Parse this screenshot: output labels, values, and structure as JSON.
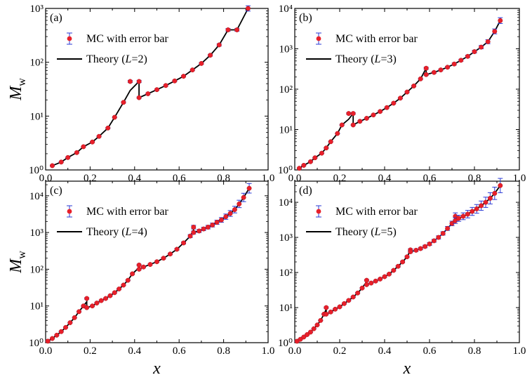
{
  "figure": {
    "ylabel_main": "M",
    "ylabel_sub": "w",
    "xlabel": "x",
    "colors": {
      "marker": "#e8202a",
      "errorbar": "#2b3bd6",
      "theory": "#000000"
    }
  },
  "legend": {
    "mc_label": "MC with error bar"
  },
  "chart_data": [
    {
      "type": "scatter",
      "panel": "(a)",
      "yscale": "log",
      "xlim": [
        0.0,
        1.0
      ],
      "ylim": [
        1,
        1000
      ],
      "xticks": [
        0.0,
        0.2,
        0.4,
        0.6,
        0.8,
        1.0
      ],
      "xtick_labels": [
        "0.0",
        "0.2",
        "0.4",
        "0.6",
        "0.8",
        "1.0"
      ],
      "yticks": [
        1,
        10,
        100,
        1000
      ],
      "ytick_labels": [
        "10⁰",
        "10¹",
        "10²",
        "10³"
      ],
      "show_xtick_labels": true,
      "show_ylabel": true,
      "show_xlabel": false,
      "legend": {
        "position": "top-left",
        "mc": "MC with error bar",
        "theory_prefix": "Theory (",
        "theory_var": "L",
        "theory_suffix": "=2)"
      },
      "series": [
        {
          "name": "MC with error bar",
          "x": [
            0.03,
            0.07,
            0.1,
            0.14,
            0.17,
            0.21,
            0.24,
            0.28,
            0.31,
            0.35,
            0.38,
            0.42,
            0.42,
            0.46,
            0.5,
            0.54,
            0.58,
            0.62,
            0.66,
            0.7,
            0.74,
            0.78,
            0.82,
            0.86,
            0.91
          ],
          "y": [
            1.2,
            1.4,
            1.7,
            2.1,
            2.7,
            3.3,
            4.2,
            6.0,
            9.5,
            18,
            44,
            44,
            22,
            26,
            31,
            37,
            45,
            55,
            72,
            95,
            135,
            210,
            400,
            400,
            1000
          ],
          "yerr_frac": [
            0.02,
            0.02,
            0.02,
            0.02,
            0.02,
            0.02,
            0.02,
            0.02,
            0.02,
            0.03,
            0.05,
            0.05,
            0.03,
            0.03,
            0.03,
            0.03,
            0.03,
            0.03,
            0.03,
            0.04,
            0.04,
            0.05,
            0.06,
            0.06,
            0.12
          ]
        },
        {
          "name": "Theory",
          "x": [
            0.03,
            0.07,
            0.1,
            0.14,
            0.17,
            0.21,
            0.24,
            0.28,
            0.31,
            0.35,
            0.38,
            0.42,
            0.42,
            0.46,
            0.5,
            0.54,
            0.58,
            0.62,
            0.66,
            0.7,
            0.74,
            0.78,
            0.82,
            0.86,
            0.86,
            0.91
          ],
          "y": [
            1.2,
            1.4,
            1.7,
            2.1,
            2.7,
            3.3,
            4.2,
            6.0,
            9.5,
            18,
            30,
            44,
            22,
            26,
            31,
            37,
            45,
            55,
            72,
            95,
            135,
            210,
            400,
            400,
            400,
            1000
          ]
        }
      ]
    },
    {
      "type": "scatter",
      "panel": "(b)",
      "yscale": "log",
      "xlim": [
        0.0,
        1.0
      ],
      "ylim": [
        1,
        10000
      ],
      "xticks": [
        0.0,
        0.2,
        0.4,
        0.6,
        0.8,
        1.0
      ],
      "xtick_labels": [
        "0.0",
        "0.2",
        "0.4",
        "0.6",
        "0.8",
        "1.0"
      ],
      "yticks": [
        1,
        10,
        100,
        1000,
        10000
      ],
      "ytick_labels": [
        "10⁰",
        "10¹",
        "10²",
        "10³",
        "10⁴"
      ],
      "show_xtick_labels": true,
      "show_ylabel": false,
      "show_xlabel": false,
      "legend": {
        "position": "top-left",
        "mc": "MC with error bar",
        "theory_prefix": "Theory (",
        "theory_var": "L",
        "theory_suffix": "=3)"
      },
      "series": [
        {
          "name": "MC with error bar",
          "x": [
            0.02,
            0.04,
            0.07,
            0.09,
            0.12,
            0.14,
            0.16,
            0.19,
            0.21,
            0.24,
            0.26,
            0.26,
            0.29,
            0.32,
            0.35,
            0.38,
            0.41,
            0.44,
            0.47,
            0.5,
            0.53,
            0.56,
            0.585,
            0.585,
            0.62,
            0.65,
            0.68,
            0.71,
            0.74,
            0.77,
            0.8,
            0.83,
            0.86,
            0.89,
            0.915
          ],
          "y": [
            1.1,
            1.3,
            1.6,
            2.0,
            2.6,
            3.5,
            5.0,
            8.0,
            13,
            25,
            25,
            13,
            16,
            19,
            23,
            28,
            35,
            45,
            60,
            85,
            120,
            180,
            330,
            230,
            260,
            300,
            350,
            420,
            520,
            650,
            850,
            1100,
            1500,
            2700,
            5000
          ],
          "yerr_frac": [
            0.02,
            0.02,
            0.02,
            0.02,
            0.02,
            0.02,
            0.02,
            0.02,
            0.03,
            0.05,
            0.05,
            0.03,
            0.03,
            0.03,
            0.03,
            0.03,
            0.03,
            0.03,
            0.03,
            0.03,
            0.04,
            0.04,
            0.06,
            0.05,
            0.05,
            0.05,
            0.05,
            0.06,
            0.06,
            0.07,
            0.08,
            0.1,
            0.12,
            0.15,
            0.18
          ]
        },
        {
          "name": "Theory",
          "x": [
            0.02,
            0.04,
            0.07,
            0.09,
            0.12,
            0.14,
            0.16,
            0.19,
            0.21,
            0.24,
            0.26,
            0.26,
            0.29,
            0.32,
            0.35,
            0.38,
            0.41,
            0.44,
            0.47,
            0.5,
            0.53,
            0.56,
            0.585,
            0.585,
            0.62,
            0.65,
            0.68,
            0.71,
            0.74,
            0.77,
            0.8,
            0.83,
            0.86,
            0.89,
            0.915
          ],
          "y": [
            1.1,
            1.3,
            1.6,
            2.0,
            2.6,
            3.5,
            5.0,
            8.0,
            13,
            18,
            25,
            13,
            16,
            19,
            23,
            28,
            35,
            45,
            60,
            85,
            120,
            180,
            330,
            230,
            260,
            300,
            350,
            420,
            520,
            650,
            850,
            1100,
            1500,
            2700,
            5000
          ]
        }
      ]
    },
    {
      "type": "scatter",
      "panel": "(c)",
      "yscale": "log",
      "xlim": [
        0.0,
        1.0
      ],
      "ylim": [
        1,
        25000
      ],
      "xticks": [
        0.0,
        0.2,
        0.4,
        0.6,
        0.8,
        1.0
      ],
      "xtick_labels": [
        "0.0",
        "0.2",
        "0.4",
        "0.6",
        "0.8",
        "1.0"
      ],
      "yticks": [
        1,
        10,
        100,
        1000,
        10000
      ],
      "ytick_labels": [
        "10⁰",
        "10¹",
        "10²",
        "10³",
        "10⁴"
      ],
      "show_xtick_labels": true,
      "show_ylabel": true,
      "show_xlabel": true,
      "legend": {
        "position": "top-left",
        "mc": "MC with error bar",
        "theory_prefix": "Theory (",
        "theory_var": "L",
        "theory_suffix": "=4)"
      },
      "series": [
        {
          "name": "MC with error bar",
          "x": [
            0.01,
            0.03,
            0.05,
            0.07,
            0.09,
            0.11,
            0.13,
            0.15,
            0.17,
            0.185,
            0.185,
            0.21,
            0.23,
            0.25,
            0.27,
            0.29,
            0.31,
            0.33,
            0.35,
            0.37,
            0.39,
            0.42,
            0.42,
            0.44,
            0.47,
            0.5,
            0.53,
            0.56,
            0.59,
            0.62,
            0.65,
            0.665,
            0.665,
            0.69,
            0.71,
            0.73,
            0.75,
            0.77,
            0.79,
            0.81,
            0.83,
            0.85,
            0.87,
            0.89,
            0.915
          ],
          "y": [
            1.1,
            1.3,
            1.6,
            2.0,
            2.6,
            3.5,
            4.8,
            7,
            10,
            16,
            9,
            10,
            12,
            14,
            16,
            19,
            23,
            29,
            37,
            50,
            75,
            130,
            100,
            115,
            135,
            160,
            200,
            260,
            350,
            520,
            800,
            1400,
            1000,
            1100,
            1250,
            1400,
            1600,
            1900,
            2200,
            2700,
            3300,
            4200,
            6000,
            9000,
            16000
          ],
          "yerr_frac": [
            0.02,
            0.02,
            0.02,
            0.02,
            0.02,
            0.02,
            0.02,
            0.02,
            0.03,
            0.05,
            0.03,
            0.03,
            0.03,
            0.03,
            0.03,
            0.03,
            0.03,
            0.03,
            0.03,
            0.03,
            0.04,
            0.05,
            0.04,
            0.04,
            0.04,
            0.04,
            0.05,
            0.05,
            0.06,
            0.07,
            0.1,
            0.12,
            0.1,
            0.1,
            0.11,
            0.12,
            0.13,
            0.14,
            0.16,
            0.18,
            0.2,
            0.23,
            0.26,
            0.3,
            0.35
          ]
        },
        {
          "name": "Theory",
          "x": [
            0.01,
            0.03,
            0.05,
            0.07,
            0.09,
            0.11,
            0.13,
            0.15,
            0.17,
            0.185,
            0.185,
            0.21,
            0.23,
            0.25,
            0.27,
            0.29,
            0.31,
            0.33,
            0.35,
            0.37,
            0.39,
            0.42,
            0.42,
            0.44,
            0.47,
            0.5,
            0.53,
            0.56,
            0.59,
            0.62,
            0.65,
            0.665,
            0.665,
            0.69,
            0.71,
            0.73,
            0.75,
            0.77,
            0.79,
            0.81,
            0.83,
            0.85,
            0.87,
            0.89,
            0.915
          ],
          "y": [
            1.1,
            1.3,
            1.6,
            2.0,
            2.6,
            3.5,
            4.8,
            7,
            10,
            13,
            9,
            10,
            12,
            14,
            16,
            19,
            23,
            29,
            37,
            50,
            75,
            110,
            100,
            115,
            135,
            160,
            200,
            260,
            350,
            520,
            800,
            1200,
            1000,
            1100,
            1250,
            1400,
            1600,
            1900,
            2200,
            2700,
            3300,
            4200,
            6000,
            9000,
            16000
          ]
        }
      ]
    },
    {
      "type": "scatter",
      "panel": "(d)",
      "yscale": "log",
      "xlim": [
        0.0,
        1.0
      ],
      "ylim": [
        1,
        40000
      ],
      "xticks": [
        0.0,
        0.2,
        0.4,
        0.6,
        0.8,
        1.0
      ],
      "xtick_labels": [
        "0.0",
        "0.2",
        "0.4",
        "0.6",
        "0.8",
        "1.0"
      ],
      "yticks": [
        1,
        10,
        100,
        1000,
        10000
      ],
      "ytick_labels": [
        "10⁰",
        "10¹",
        "10²",
        "10³",
        "10⁴"
      ],
      "show_xtick_labels": true,
      "show_ylabel": false,
      "show_xlabel": true,
      "legend": {
        "position": "top-left",
        "mc": "MC with error bar",
        "theory_prefix": "Theory (",
        "theory_var": "L",
        "theory_suffix": "=5)"
      },
      "series": [
        {
          "name": "MC with error bar",
          "x": [
            0.01,
            0.025,
            0.04,
            0.055,
            0.07,
            0.085,
            0.1,
            0.115,
            0.13,
            0.14,
            0.14,
            0.16,
            0.18,
            0.2,
            0.22,
            0.24,
            0.26,
            0.28,
            0.3,
            0.32,
            0.32,
            0.34,
            0.36,
            0.38,
            0.4,
            0.42,
            0.44,
            0.46,
            0.48,
            0.5,
            0.515,
            0.515,
            0.54,
            0.56,
            0.58,
            0.6,
            0.62,
            0.64,
            0.66,
            0.68,
            0.7,
            0.715,
            0.715,
            0.73,
            0.75,
            0.77,
            0.79,
            0.81,
            0.83,
            0.85,
            0.87,
            0.89,
            0.915
          ],
          "y": [
            1.1,
            1.25,
            1.45,
            1.7,
            2.0,
            2.5,
            3.2,
            4.3,
            6.5,
            10,
            6.5,
            7.5,
            9,
            10.5,
            13,
            16,
            20,
            26,
            36,
            60,
            45,
            50,
            57,
            65,
            76,
            90,
            115,
            150,
            200,
            280,
            440,
            390,
            430,
            480,
            550,
            650,
            800,
            1000,
            1300,
            1800,
            2500,
            4000,
            3000,
            3500,
            4000,
            4600,
            5500,
            6500,
            8000,
            10000,
            13000,
            18000,
            30000
          ],
          "yerr_frac": [
            0.02,
            0.02,
            0.02,
            0.02,
            0.02,
            0.02,
            0.02,
            0.02,
            0.03,
            0.05,
            0.03,
            0.03,
            0.03,
            0.03,
            0.03,
            0.03,
            0.03,
            0.03,
            0.03,
            0.05,
            0.04,
            0.04,
            0.04,
            0.04,
            0.04,
            0.04,
            0.05,
            0.05,
            0.05,
            0.06,
            0.08,
            0.07,
            0.08,
            0.08,
            0.09,
            0.1,
            0.1,
            0.11,
            0.12,
            0.14,
            0.16,
            0.25,
            0.2,
            0.22,
            0.25,
            0.28,
            0.3,
            0.33,
            0.36,
            0.4,
            0.45,
            0.5,
            0.6
          ]
        },
        {
          "name": "Theory",
          "x": [
            0.01,
            0.025,
            0.04,
            0.055,
            0.07,
            0.085,
            0.1,
            0.115,
            0.13,
            0.14,
            0.14,
            0.16,
            0.18,
            0.2,
            0.22,
            0.24,
            0.26,
            0.28,
            0.3,
            0.32,
            0.32,
            0.34,
            0.36,
            0.38,
            0.4,
            0.42,
            0.44,
            0.46,
            0.48,
            0.5,
            0.515,
            0.515,
            0.54,
            0.56,
            0.58,
            0.6,
            0.62,
            0.64,
            0.66,
            0.68,
            0.7,
            0.715,
            0.715,
            0.73,
            0.75,
            0.77,
            0.79,
            0.81,
            0.83,
            0.85,
            0.87,
            0.89,
            0.915
          ],
          "y": [
            1.1,
            1.25,
            1.45,
            1.7,
            2.0,
            2.5,
            3.2,
            4.3,
            6.5,
            9,
            6.5,
            7.5,
            9,
            10.5,
            13,
            16,
            20,
            26,
            36,
            55,
            45,
            50,
            57,
            65,
            76,
            90,
            115,
            150,
            200,
            280,
            420,
            390,
            430,
            480,
            550,
            650,
            800,
            1000,
            1300,
            1800,
            2500,
            3600,
            3000,
            3500,
            4000,
            4600,
            5500,
            6500,
            8000,
            10000,
            13000,
            18000,
            30000
          ]
        }
      ]
    }
  ]
}
